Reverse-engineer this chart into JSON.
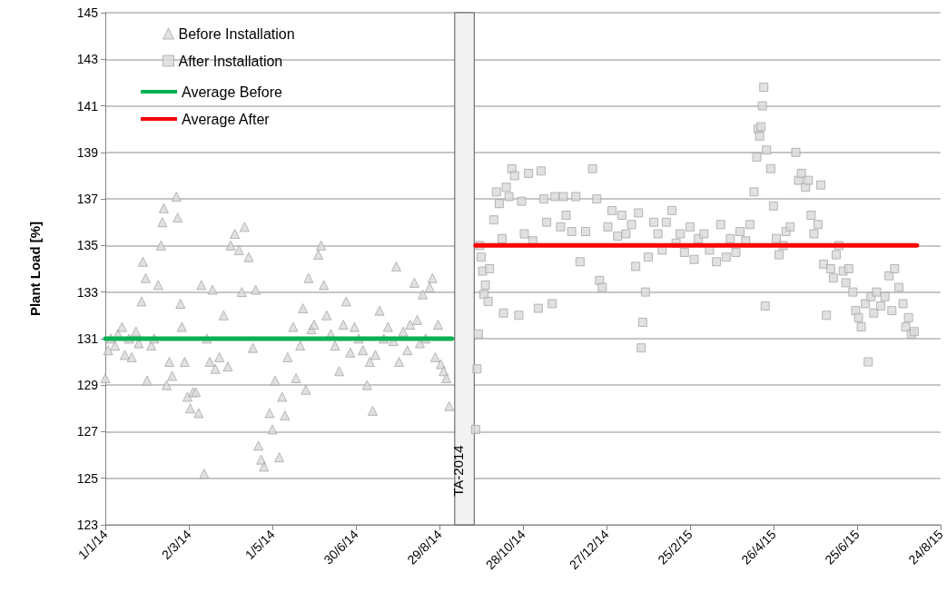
{
  "chart_data": {
    "type": "scatter",
    "ylabel": "Plant Load [%]",
    "xlim": [
      "2014-01-01",
      "2015-08-24"
    ],
    "xticks": [
      {
        "value": "2014-01-01",
        "label": "1/1/14"
      },
      {
        "value": "2014-03-02",
        "label": "2/3/14"
      },
      {
        "value": "2014-05-01",
        "label": "1/5/14"
      },
      {
        "value": "2014-06-30",
        "label": "30/6/14"
      },
      {
        "value": "2014-08-29",
        "label": "29/8/14"
      },
      {
        "value": "2014-10-28",
        "label": "28/10/14"
      },
      {
        "value": "2014-12-27",
        "label": "27/12/14"
      },
      {
        "value": "2015-02-25",
        "label": "25/2/15"
      },
      {
        "value": "2015-04-26",
        "label": "26/4/15"
      },
      {
        "value": "2015-06-25",
        "label": "25/6/15"
      },
      {
        "value": "2015-08-24",
        "label": "24/8/15"
      }
    ],
    "ylim": [
      123,
      145
    ],
    "yticks": [
      123,
      125,
      127,
      129,
      131,
      133,
      135,
      137,
      139,
      141,
      143,
      145
    ],
    "grid": "y",
    "legend": "top left",
    "bands": [
      {
        "axis": "x",
        "from": "2014-09-09",
        "to": "2014-09-23",
        "label": "TA-2014",
        "color": "#f2f2f2"
      }
    ],
    "series": [
      {
        "name": "Before Installation",
        "marker": "triangle",
        "color": "#d9d9d9",
        "x": [
          "2014-01-01",
          "2014-01-03",
          "2014-01-05",
          "2014-01-08",
          "2014-01-10",
          "2014-01-13",
          "2014-01-15",
          "2014-01-18",
          "2014-01-20",
          "2014-01-23",
          "2014-01-25",
          "2014-01-27",
          "2014-01-28",
          "2014-01-30",
          "2014-01-31",
          "2014-02-03",
          "2014-02-05",
          "2014-02-08",
          "2014-02-10",
          "2014-02-11",
          "2014-02-12",
          "2014-02-14",
          "2014-02-16",
          "2014-02-18",
          "2014-02-21",
          "2014-02-22",
          "2014-02-24",
          "2014-02-25",
          "2014-02-27",
          "2014-03-01",
          "2014-03-03",
          "2014-03-05",
          "2014-03-07",
          "2014-03-09",
          "2014-03-11",
          "2014-03-13",
          "2014-03-15",
          "2014-03-17",
          "2014-03-19",
          "2014-03-21",
          "2014-03-24",
          "2014-03-27",
          "2014-03-30",
          "2014-04-01",
          "2014-04-04",
          "2014-04-07",
          "2014-04-09",
          "2014-04-11",
          "2014-04-14",
          "2014-04-17",
          "2014-04-19",
          "2014-04-21",
          "2014-04-23",
          "2014-04-25",
          "2014-04-29",
          "2014-05-01",
          "2014-05-03",
          "2014-05-06",
          "2014-05-08",
          "2014-05-10",
          "2014-05-12",
          "2014-05-16",
          "2014-05-18",
          "2014-05-21",
          "2014-05-23",
          "2014-05-25",
          "2014-05-27",
          "2014-05-29",
          "2014-05-31",
          "2014-06-03",
          "2014-06-05",
          "2014-06-07",
          "2014-06-09",
          "2014-06-12",
          "2014-06-15",
          "2014-06-18",
          "2014-06-21",
          "2014-06-23",
          "2014-06-26",
          "2014-06-29",
          "2014-07-02",
          "2014-07-05",
          "2014-07-08",
          "2014-07-10",
          "2014-07-12",
          "2014-07-14",
          "2014-07-17",
          "2014-07-20",
          "2014-07-23",
          "2014-07-27",
          "2014-07-29",
          "2014-07-31",
          "2014-08-03",
          "2014-08-06",
          "2014-08-08",
          "2014-08-11",
          "2014-08-13",
          "2014-08-15",
          "2014-08-17",
          "2014-08-19",
          "2014-08-22",
          "2014-08-24",
          "2014-08-26",
          "2014-08-28",
          "2014-08-30",
          "2014-09-01",
          "2014-09-03",
          "2014-09-05"
        ],
        "values": [
          129.3,
          130.5,
          131.0,
          130.7,
          131.2,
          131.5,
          130.3,
          131.0,
          130.2,
          131.3,
          130.8,
          132.6,
          134.3,
          133.6,
          129.2,
          130.7,
          131.0,
          133.3,
          135.0,
          136.0,
          136.6,
          129.0,
          130.0,
          129.4,
          137.1,
          136.2,
          132.5,
          131.5,
          130.0,
          128.5,
          128.0,
          128.7,
          128.7,
          127.8,
          133.3,
          125.2,
          131.0,
          130.0,
          133.1,
          129.7,
          130.2,
          132.0,
          129.8,
          135.0,
          135.5,
          134.8,
          133.0,
          135.8,
          134.5,
          130.6,
          133.1,
          126.4,
          125.8,
          125.5,
          127.8,
          127.1,
          129.2,
          125.9,
          128.5,
          127.7,
          130.2,
          131.5,
          129.3,
          130.7,
          132.3,
          128.8,
          133.6,
          131.4,
          131.6,
          134.6,
          135.0,
          133.3,
          132.0,
          131.2,
          130.7,
          129.6,
          131.6,
          132.6,
          130.4,
          131.5,
          131.0,
          130.5,
          129.0,
          130.0,
          127.9,
          130.3,
          132.2,
          131.0,
          131.5,
          130.9,
          134.1,
          130.0,
          131.3,
          130.5,
          131.6,
          133.4,
          131.8,
          130.8,
          132.9,
          131.0,
          133.2,
          133.6,
          130.2,
          131.6,
          129.9,
          129.6,
          129.3,
          128.1
        ]
      },
      {
        "name": "After Installation",
        "marker": "square",
        "color": "#d9d9d9",
        "x": [
          "2014-09-24",
          "2014-09-25",
          "2014-09-26",
          "2014-09-27",
          "2014-09-28",
          "2014-09-29",
          "2014-09-30",
          "2014-10-01",
          "2014-10-03",
          "2014-10-04",
          "2014-10-07",
          "2014-10-09",
          "2014-10-11",
          "2014-10-13",
          "2014-10-14",
          "2014-10-16",
          "2014-10-18",
          "2014-10-20",
          "2014-10-22",
          "2014-10-25",
          "2014-10-27",
          "2014-10-29",
          "2014-11-01",
          "2014-11-04",
          "2014-11-08",
          "2014-11-10",
          "2014-11-12",
          "2014-11-14",
          "2014-11-18",
          "2014-11-20",
          "2014-11-24",
          "2014-11-26",
          "2014-11-28",
          "2014-12-02",
          "2014-12-05",
          "2014-12-08",
          "2014-12-12",
          "2014-12-17",
          "2014-12-20",
          "2014-12-22",
          "2014-12-24",
          "2014-12-28",
          "2014-12-31",
          "2015-01-04",
          "2015-01-07",
          "2015-01-10",
          "2015-01-14",
          "2015-01-17",
          "2015-01-19",
          "2015-01-21",
          "2015-01-22",
          "2015-01-24",
          "2015-01-26",
          "2015-01-30",
          "2015-02-02",
          "2015-02-05",
          "2015-02-08",
          "2015-02-12",
          "2015-02-15",
          "2015-02-18",
          "2015-02-21",
          "2015-02-25",
          "2015-02-28",
          "2015-03-03",
          "2015-03-07",
          "2015-03-11",
          "2015-03-16",
          "2015-03-19",
          "2015-03-23",
          "2015-03-26",
          "2015-03-30",
          "2015-04-02",
          "2015-04-06",
          "2015-04-09",
          "2015-04-12",
          "2015-04-14",
          "2015-04-15",
          "2015-04-16",
          "2015-04-17",
          "2015-04-18",
          "2015-04-19",
          "2015-04-20",
          "2015-04-21",
          "2015-04-24",
          "2015-04-26",
          "2015-04-28",
          "2015-04-30",
          "2015-05-03",
          "2015-05-05",
          "2015-05-08",
          "2015-05-12",
          "2015-05-14",
          "2015-05-16",
          "2015-05-19",
          "2015-05-21",
          "2015-05-23",
          "2015-05-25",
          "2015-05-28",
          "2015-05-30",
          "2015-06-01",
          "2015-06-03",
          "2015-06-06",
          "2015-06-08",
          "2015-06-10",
          "2015-06-12",
          "2015-06-15",
          "2015-06-17",
          "2015-06-19",
          "2015-06-22",
          "2015-06-24",
          "2015-06-26",
          "2015-06-28",
          "2015-07-01",
          "2015-07-03",
          "2015-07-05",
          "2015-07-07",
          "2015-07-09",
          "2015-07-12",
          "2015-07-15",
          "2015-07-18",
          "2015-07-20",
          "2015-07-22",
          "2015-07-25",
          "2015-07-28",
          "2015-07-30",
          "2015-08-01",
          "2015-08-03",
          "2015-08-05"
        ],
        "values": [
          127.1,
          129.7,
          131.2,
          135.0,
          134.5,
          133.9,
          132.9,
          133.3,
          132.6,
          134.0,
          136.1,
          137.3,
          136.8,
          135.3,
          132.1,
          137.5,
          137.1,
          138.3,
          138.0,
          132.0,
          136.9,
          135.5,
          138.1,
          135.2,
          132.3,
          138.2,
          137.0,
          136.0,
          132.5,
          137.1,
          135.8,
          137.1,
          136.3,
          135.6,
          137.1,
          134.3,
          135.6,
          138.3,
          137.0,
          133.5,
          133.2,
          135.8,
          136.5,
          135.4,
          136.3,
          135.5,
          135.9,
          134.1,
          136.4,
          130.6,
          131.7,
          133.0,
          134.5,
          136.0,
          135.5,
          134.8,
          136.0,
          136.5,
          135.1,
          135.5,
          134.7,
          135.8,
          134.4,
          135.3,
          135.5,
          134.8,
          134.3,
          135.9,
          134.5,
          135.3,
          134.7,
          135.6,
          135.2,
          135.9,
          137.3,
          138.8,
          140.0,
          139.7,
          140.1,
          141.0,
          141.8,
          132.4,
          139.1,
          138.3,
          136.7,
          135.3,
          134.6,
          135.0,
          135.6,
          135.8,
          139.0,
          137.8,
          138.1,
          137.5,
          137.8,
          136.3,
          135.5,
          135.9,
          137.6,
          134.2,
          132.0,
          134.0,
          133.6,
          134.6,
          135.0,
          133.9,
          133.4,
          134.0,
          133.0,
          132.2,
          131.9,
          131.5,
          132.5,
          130.0,
          132.8,
          132.1,
          133.0,
          132.4,
          132.8,
          133.7,
          132.2,
          134.0,
          133.2,
          132.5,
          131.5,
          131.9,
          131.2,
          131.3
        ]
      },
      {
        "name": "Average Before",
        "type": "line",
        "marker": "none",
        "color": "#00b050",
        "x": [
          "2014-01-01",
          "2014-09-07"
        ],
        "values": [
          131,
          131
        ]
      },
      {
        "name": "Average After",
        "type": "line",
        "marker": "none",
        "color": "#ff0000",
        "x": [
          "2014-09-24",
          "2015-08-07"
        ],
        "values": [
          135,
          135
        ]
      }
    ]
  }
}
